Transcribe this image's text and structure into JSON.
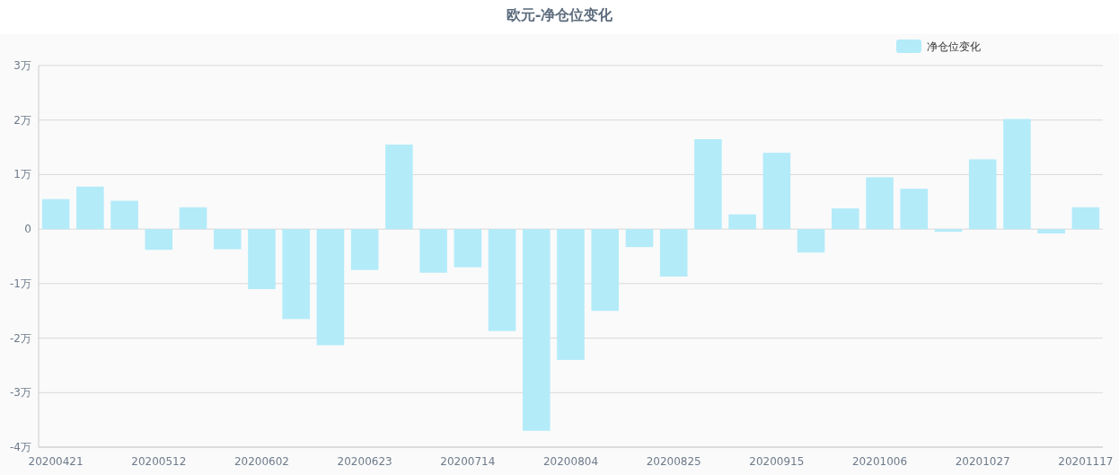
{
  "chart_data": {
    "type": "bar",
    "title": "欧元-净仓位变化",
    "categories": [
      "20200421",
      null,
      null,
      "20200512",
      null,
      null,
      "20200602",
      null,
      null,
      "20200623",
      null,
      null,
      "20200714",
      null,
      null,
      "20200804",
      null,
      null,
      "20200825",
      null,
      null,
      "20200915",
      null,
      null,
      "20201006",
      null,
      null,
      "20201027",
      null,
      null,
      "20201117"
    ],
    "series": [
      {
        "name": "净仓位变化",
        "color": "#b3ebf9",
        "values": [
          0.55,
          0.78,
          0.52,
          -0.38,
          0.4,
          -0.37,
          -1.1,
          -1.65,
          -2.13,
          -0.75,
          1.55,
          -0.8,
          -0.7,
          -1.87,
          -3.7,
          -2.4,
          -1.5,
          -0.33,
          -0.87,
          1.65,
          0.27,
          1.4,
          -0.43,
          0.38,
          0.95,
          0.74,
          -0.05,
          1.28,
          2.02,
          -0.08,
          0.4
        ]
      }
    ],
    "ylim": [
      -4,
      3
    ],
    "yticks": [
      {
        "value": -4,
        "label": "-4万"
      },
      {
        "value": -3,
        "label": "-3万"
      },
      {
        "value": -2,
        "label": "-2万"
      },
      {
        "value": -1,
        "label": "-1万"
      },
      0,
      {
        "value": 1,
        "label": "1万"
      },
      {
        "value": 2,
        "label": "2万"
      },
      {
        "value": 3,
        "label": "3万"
      }
    ],
    "grid": "y",
    "legend": "top right"
  }
}
